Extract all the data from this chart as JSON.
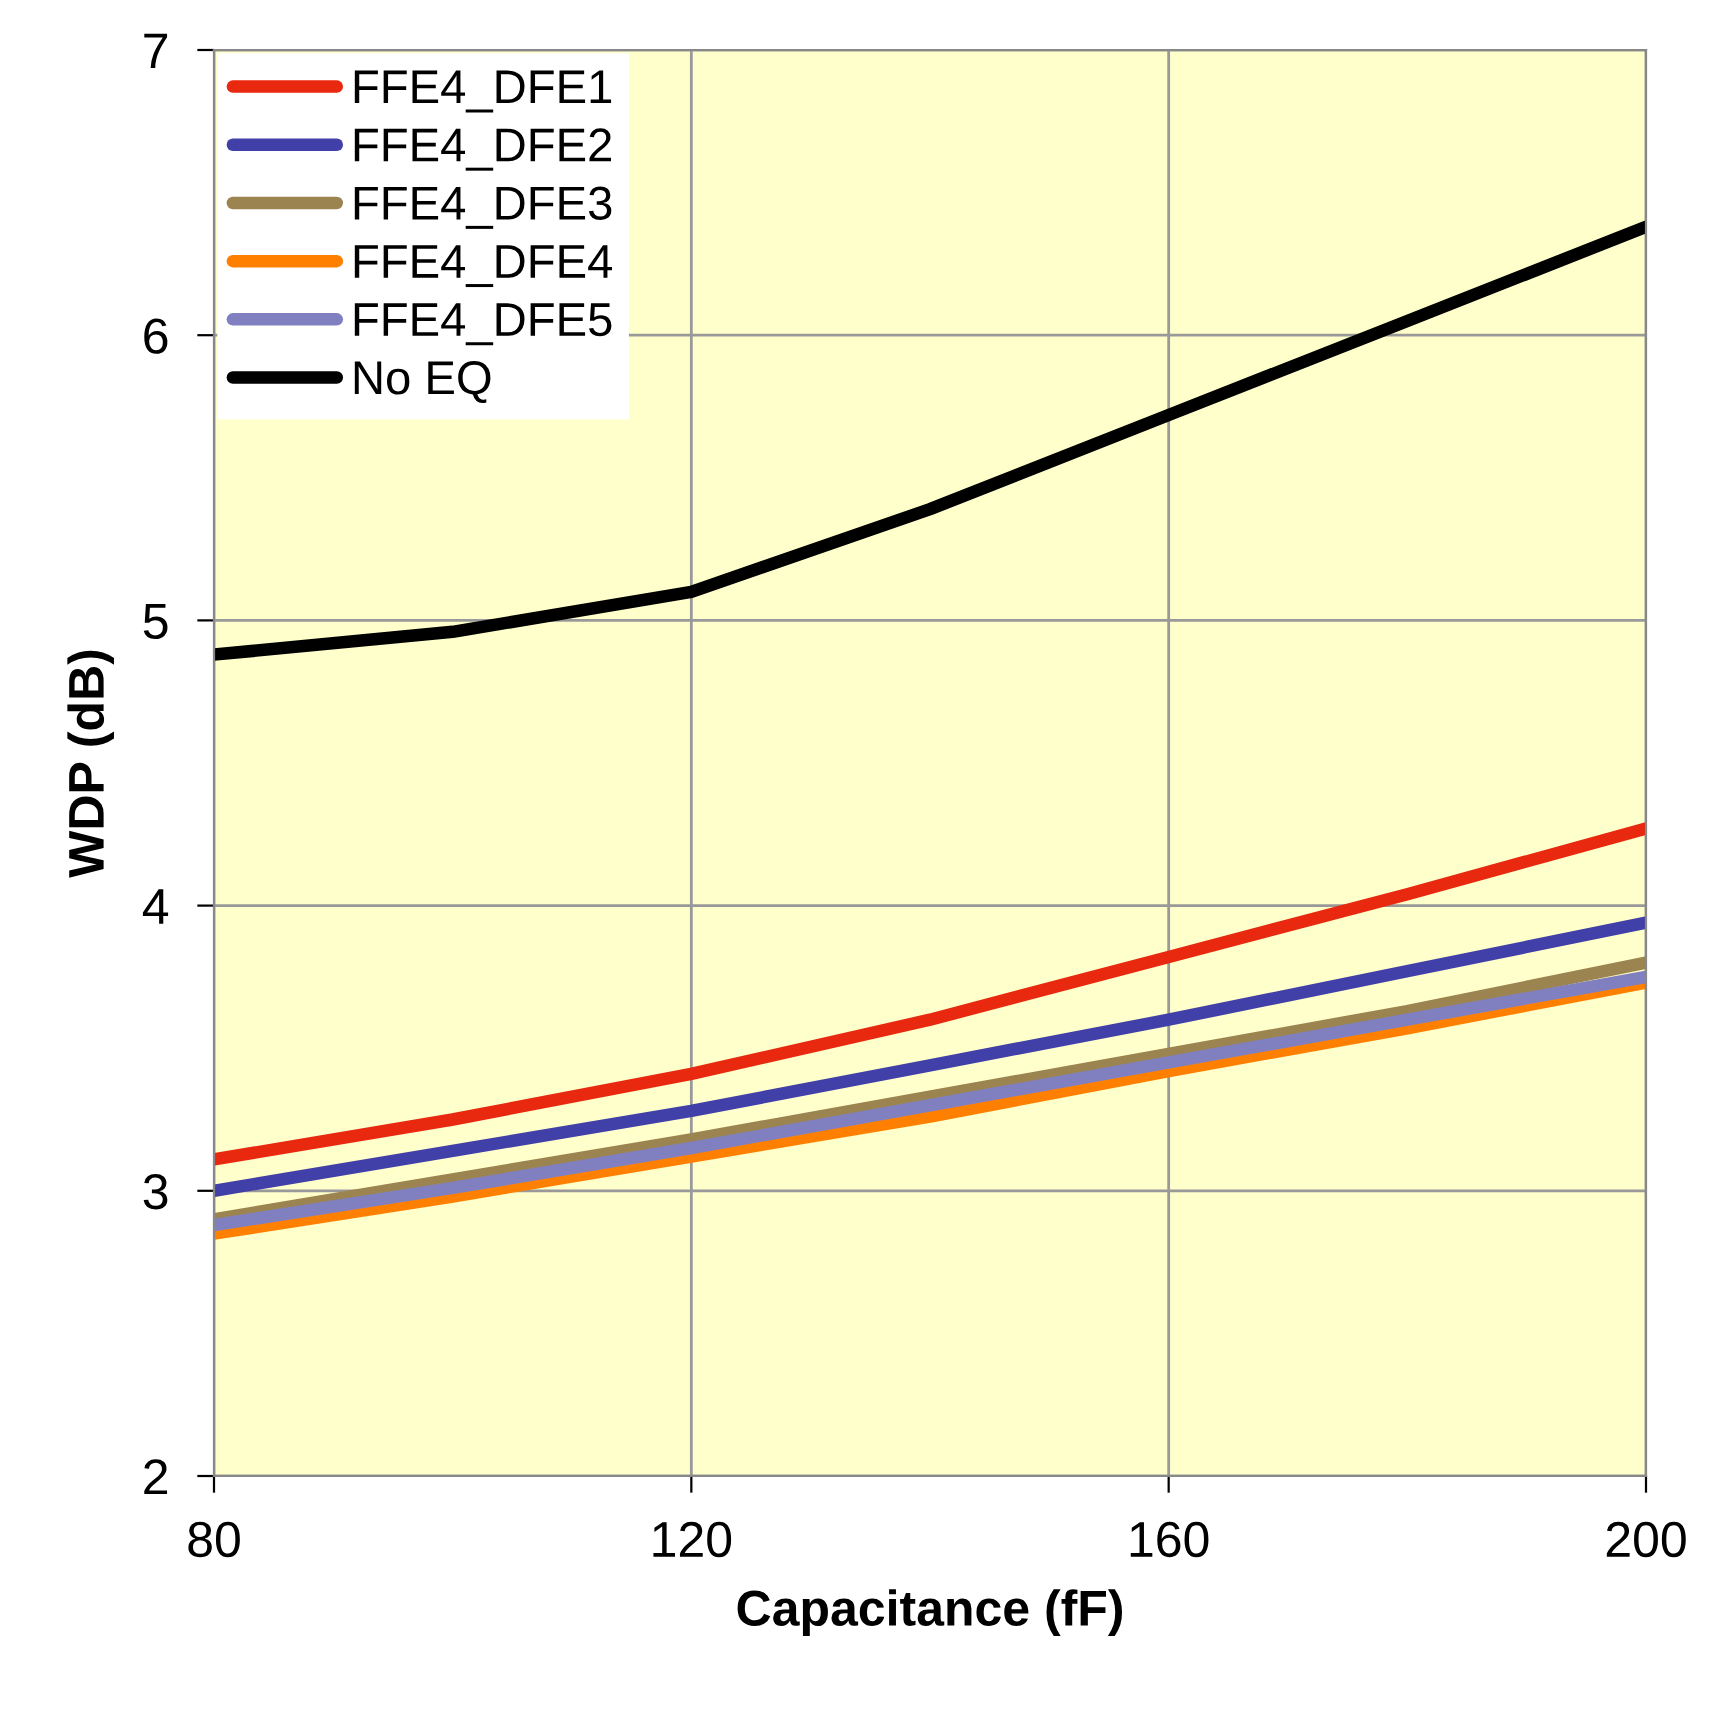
{
  "chart_data": {
    "type": "line",
    "xlabel": "Capacitance (fF)",
    "ylabel": "WDP (dB)",
    "x": [
      80,
      100,
      120,
      140,
      160,
      180,
      200
    ],
    "xlim": [
      80,
      200
    ],
    "xticks": [
      80,
      120,
      160,
      200
    ],
    "ylim": [
      2,
      7
    ],
    "yticks": [
      2,
      3,
      4,
      5,
      6,
      7
    ],
    "grid": true,
    "legend": "top left",
    "marker": "none",
    "line_style": "solid",
    "series": [
      {
        "name": "FFE4_DFE1",
        "color": "#e8280f",
        "values": [
          3.11,
          3.25,
          3.41,
          3.6,
          3.82,
          4.04,
          4.27
        ]
      },
      {
        "name": "FFE4_DFE2",
        "color": "#4040a8",
        "values": [
          3.0,
          3.14,
          3.28,
          3.44,
          3.6,
          3.77,
          3.94
        ]
      },
      {
        "name": "FFE4_DFE3",
        "color": "#9c8450",
        "values": [
          2.9,
          3.04,
          3.18,
          3.33,
          3.48,
          3.63,
          3.8
        ]
      },
      {
        "name": "FFE4_DFE4",
        "color": "#ff8000",
        "values": [
          2.85,
          2.98,
          3.12,
          3.26,
          3.42,
          3.57,
          3.73
        ]
      },
      {
        "name": "FFE4_DFE5",
        "color": "#8080c0",
        "values": [
          2.88,
          3.01,
          3.15,
          3.3,
          3.45,
          3.6,
          3.75
        ]
      },
      {
        "name": "No EQ",
        "color": "#000000",
        "values": [
          4.88,
          4.96,
          5.1,
          5.39,
          5.72,
          6.05,
          6.38
        ]
      }
    ]
  }
}
